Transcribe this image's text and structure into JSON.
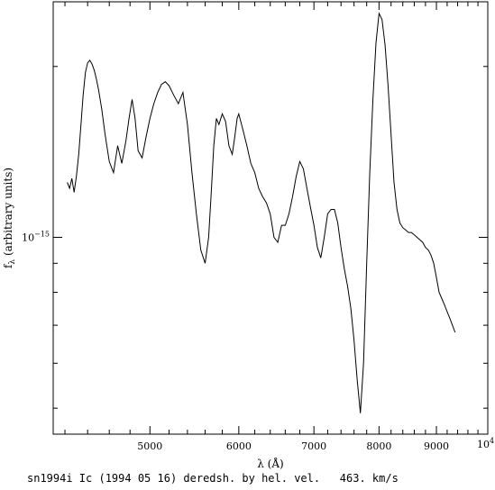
{
  "chart_data": {
    "type": "line",
    "xlabel": "λ (Å)",
    "ylabel": "f",
    "ylabel_sub": "λ",
    "ylabel_rest": " (arbitrary units)",
    "x_ticks": [
      5000,
      6000,
      7000,
      8000,
      9000
    ],
    "x_tick_labels": [
      "5000",
      "6000",
      "7000",
      "8000",
      "9000"
    ],
    "x_end_label_base": "10",
    "x_end_label_exp": "4",
    "y_tick_label_base": "10",
    "y_tick_label_exp": "−15",
    "xscale": "log",
    "yscale": "log",
    "xlim": [
      4100,
      10000
    ],
    "ylim": [
      4.5e-16,
      2.6e-15
    ],
    "series": [
      {
        "color": "#000000",
        "x": [
          4220,
          4240,
          4260,
          4280,
          4300,
          4320,
          4340,
          4360,
          4380,
          4400,
          4420,
          4440,
          4460,
          4480,
          4500,
          4530,
          4560,
          4600,
          4640,
          4680,
          4720,
          4760,
          4790,
          4820,
          4850,
          4880,
          4920,
          4960,
          5000,
          5040,
          5080,
          5120,
          5160,
          5200,
          5250,
          5300,
          5350,
          5400,
          5450,
          5500,
          5550,
          5600,
          5640,
          5670,
          5700,
          5730,
          5760,
          5800,
          5840,
          5880,
          5920,
          5950,
          5980,
          6000,
          6050,
          6100,
          6150,
          6200,
          6250,
          6300,
          6350,
          6400,
          6450,
          6500,
          6550,
          6600,
          6650,
          6700,
          6750,
          6800,
          6850,
          6900,
          6950,
          7000,
          7050,
          7100,
          7150,
          7200,
          7250,
          7300,
          7350,
          7400,
          7450,
          7500,
          7550,
          7600,
          7650,
          7700,
          7750,
          7800,
          7850,
          7900,
          7950,
          8000,
          8050,
          8100,
          8150,
          8200,
          8250,
          8300,
          8350,
          8400,
          8450,
          8500,
          8550,
          8600,
          8650,
          8700,
          8750,
          8800,
          8850,
          8900,
          8950,
          9000,
          9050,
          9100,
          9150,
          9200,
          9250,
          9300,
          9350
        ],
        "y": [
          1.25e-15,
          1.22e-15,
          1.27e-15,
          1.2e-15,
          1.28e-15,
          1.4e-15,
          1.58e-15,
          1.78e-15,
          1.95e-15,
          2.03e-15,
          2.05e-15,
          2.02e-15,
          1.97e-15,
          1.9e-15,
          1.82e-15,
          1.68e-15,
          1.52e-15,
          1.36e-15,
          1.3e-15,
          1.45e-15,
          1.35e-15,
          1.48e-15,
          1.62e-15,
          1.75e-15,
          1.62e-15,
          1.42e-15,
          1.38e-15,
          1.5e-15,
          1.62e-15,
          1.72e-15,
          1.8e-15,
          1.86e-15,
          1.88e-15,
          1.85e-15,
          1.78e-15,
          1.72e-15,
          1.8e-15,
          1.58e-15,
          1.3e-15,
          1.1e-15,
          9.5e-16,
          9e-16,
          1e-15,
          1.2e-15,
          1.45e-15,
          1.62e-15,
          1.58e-15,
          1.65e-15,
          1.6e-15,
          1.45e-15,
          1.4e-15,
          1.5e-15,
          1.62e-15,
          1.65e-15,
          1.55e-15,
          1.45e-15,
          1.35e-15,
          1.3e-15,
          1.22e-15,
          1.18e-15,
          1.15e-15,
          1.1e-15,
          1e-15,
          9.8e-16,
          1.05e-15,
          1.05e-15,
          1.1e-15,
          1.18e-15,
          1.28e-15,
          1.36e-15,
          1.32e-15,
          1.22e-15,
          1.13e-15,
          1.05e-15,
          9.6e-16,
          9.2e-16,
          1e-15,
          1.1e-15,
          1.12e-15,
          1.12e-15,
          1.06e-15,
          9.6e-16,
          8.8e-16,
          8.2e-16,
          7.5e-16,
          6.6e-16,
          5.6e-16,
          4.9e-16,
          6e-16,
          9e-16,
          1.3e-15,
          1.75e-15,
          2.2e-15,
          2.48e-15,
          2.42e-15,
          2.18e-15,
          1.85e-15,
          1.52e-15,
          1.25e-15,
          1.12e-15,
          1.06e-15,
          1.04e-15,
          1.03e-15,
          1.02e-15,
          1.02e-15,
          1.01e-15,
          1e-15,
          9.9e-16,
          9.8e-16,
          9.6e-16,
          9.5e-16,
          9.3e-16,
          9e-16,
          8.5e-16,
          8e-16,
          7.8e-16,
          7.6e-16,
          7.4e-16,
          7.2e-16,
          7e-16,
          6.8e-16
        ]
      }
    ]
  },
  "caption": "sn1994i Ic (1994 05 16) deredsh. by hel. vel.   463. km/s"
}
